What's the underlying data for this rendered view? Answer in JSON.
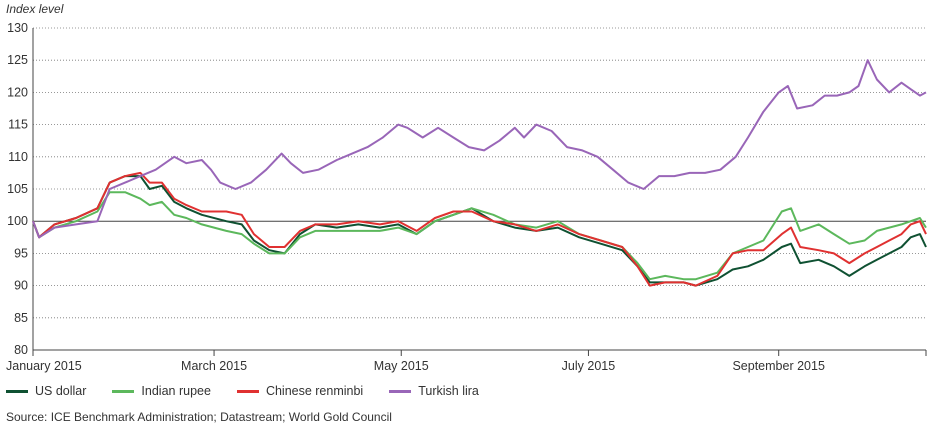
{
  "chart_data": {
    "type": "line",
    "ylabel": "Index level",
    "ylim": [
      80,
      130
    ],
    "yticks": [
      80,
      85,
      90,
      95,
      100,
      105,
      110,
      115,
      120,
      125,
      130
    ],
    "xlim": [
      "2015-01-01",
      "2015-10-19"
    ],
    "xticks": [
      {
        "label": "January 2015",
        "date": "2015-01-01"
      },
      {
        "label": "March 2015",
        "date": "2015-03-01"
      },
      {
        "label": "May 2015",
        "date": "2015-05-01"
      },
      {
        "label": "July 2015",
        "date": "2015-07-01"
      },
      {
        "label": "September 2015",
        "date": "2015-09-01"
      }
    ],
    "grid": "horizontal-dotted",
    "legend_position": "bottom",
    "series": [
      {
        "name": "US dollar",
        "color": "#0f5132",
        "points": [
          [
            "2015-01-01",
            100
          ],
          [
            "2015-01-03",
            97.5
          ],
          [
            "2015-01-08",
            99.5
          ],
          [
            "2015-01-15",
            100.5
          ],
          [
            "2015-01-22",
            102
          ],
          [
            "2015-01-26",
            106
          ],
          [
            "2015-01-31",
            107
          ],
          [
            "2015-02-05",
            107
          ],
          [
            "2015-02-08",
            105
          ],
          [
            "2015-02-12",
            105.5
          ],
          [
            "2015-02-16",
            103
          ],
          [
            "2015-02-20",
            102
          ],
          [
            "2015-02-25",
            101
          ],
          [
            "2015-03-05",
            100
          ],
          [
            "2015-03-10",
            99.5
          ],
          [
            "2015-03-14",
            97
          ],
          [
            "2015-03-19",
            95.5
          ],
          [
            "2015-03-24",
            95
          ],
          [
            "2015-03-29",
            98
          ],
          [
            "2015-04-03",
            99.5
          ],
          [
            "2015-04-10",
            99
          ],
          [
            "2015-04-17",
            99.5
          ],
          [
            "2015-04-24",
            99
          ],
          [
            "2015-04-30",
            99.5
          ],
          [
            "2015-05-06",
            98
          ],
          [
            "2015-05-12",
            100
          ],
          [
            "2015-05-18",
            101
          ],
          [
            "2015-05-24",
            102
          ],
          [
            "2015-05-31",
            100
          ],
          [
            "2015-06-07",
            99
          ],
          [
            "2015-06-14",
            98.5
          ],
          [
            "2015-06-21",
            99
          ],
          [
            "2015-06-28",
            97.5
          ],
          [
            "2015-07-05",
            96.5
          ],
          [
            "2015-07-12",
            95.5
          ],
          [
            "2015-07-17",
            93
          ],
          [
            "2015-07-21",
            90.5
          ],
          [
            "2015-07-26",
            90.5
          ],
          [
            "2015-08-01",
            90.5
          ],
          [
            "2015-08-05",
            90
          ],
          [
            "2015-08-12",
            91
          ],
          [
            "2015-08-17",
            92.5
          ],
          [
            "2015-08-22",
            93
          ],
          [
            "2015-08-27",
            94
          ],
          [
            "2015-09-02",
            96
          ],
          [
            "2015-09-05",
            96.5
          ],
          [
            "2015-09-08",
            93.5
          ],
          [
            "2015-09-14",
            94
          ],
          [
            "2015-09-19",
            93
          ],
          [
            "2015-09-24",
            91.5
          ],
          [
            "2015-09-29",
            93
          ],
          [
            "2015-10-03",
            94
          ],
          [
            "2015-10-07",
            95
          ],
          [
            "2015-10-11",
            96
          ],
          [
            "2015-10-14",
            97.5
          ],
          [
            "2015-10-17",
            98
          ],
          [
            "2015-10-19",
            96
          ]
        ]
      },
      {
        "name": "Indian rupee",
        "color": "#5cb85c",
        "points": [
          [
            "2015-01-01",
            100
          ],
          [
            "2015-01-03",
            97.5
          ],
          [
            "2015-01-08",
            99
          ],
          [
            "2015-01-15",
            100
          ],
          [
            "2015-01-22",
            101.5
          ],
          [
            "2015-01-26",
            104.5
          ],
          [
            "2015-01-31",
            104.5
          ],
          [
            "2015-02-05",
            103.5
          ],
          [
            "2015-02-08",
            102.5
          ],
          [
            "2015-02-12",
            103
          ],
          [
            "2015-02-16",
            101
          ],
          [
            "2015-02-20",
            100.5
          ],
          [
            "2015-02-25",
            99.5
          ],
          [
            "2015-03-05",
            98.5
          ],
          [
            "2015-03-10",
            98
          ],
          [
            "2015-03-14",
            96.5
          ],
          [
            "2015-03-19",
            95
          ],
          [
            "2015-03-24",
            95
          ],
          [
            "2015-03-29",
            97.5
          ],
          [
            "2015-04-03",
            98.5
          ],
          [
            "2015-04-10",
            98.5
          ],
          [
            "2015-04-17",
            98.5
          ],
          [
            "2015-04-24",
            98.5
          ],
          [
            "2015-04-30",
            99
          ],
          [
            "2015-05-06",
            98
          ],
          [
            "2015-05-12",
            100
          ],
          [
            "2015-05-18",
            101
          ],
          [
            "2015-05-24",
            102
          ],
          [
            "2015-05-31",
            101
          ],
          [
            "2015-06-07",
            99.5
          ],
          [
            "2015-06-14",
            99
          ],
          [
            "2015-06-21",
            100
          ],
          [
            "2015-06-28",
            98
          ],
          [
            "2015-07-05",
            97
          ],
          [
            "2015-07-12",
            96
          ],
          [
            "2015-07-17",
            93.5
          ],
          [
            "2015-07-21",
            91
          ],
          [
            "2015-07-26",
            91.5
          ],
          [
            "2015-08-01",
            91
          ],
          [
            "2015-08-05",
            91
          ],
          [
            "2015-08-12",
            92
          ],
          [
            "2015-08-17",
            95
          ],
          [
            "2015-08-22",
            96
          ],
          [
            "2015-08-27",
            97
          ],
          [
            "2015-09-02",
            101.5
          ],
          [
            "2015-09-05",
            102
          ],
          [
            "2015-09-08",
            98.5
          ],
          [
            "2015-09-14",
            99.5
          ],
          [
            "2015-09-19",
            98
          ],
          [
            "2015-09-24",
            96.5
          ],
          [
            "2015-09-29",
            97
          ],
          [
            "2015-10-03",
            98.5
          ],
          [
            "2015-10-07",
            99
          ],
          [
            "2015-10-11",
            99.5
          ],
          [
            "2015-10-14",
            100
          ],
          [
            "2015-10-17",
            100.5
          ],
          [
            "2015-10-19",
            99
          ]
        ]
      },
      {
        "name": "Chinese renminbi",
        "color": "#e03131",
        "points": [
          [
            "2015-01-01",
            100
          ],
          [
            "2015-01-03",
            97.5
          ],
          [
            "2015-01-08",
            99.5
          ],
          [
            "2015-01-15",
            100.5
          ],
          [
            "2015-01-22",
            102
          ],
          [
            "2015-01-26",
            106
          ],
          [
            "2015-01-31",
            107
          ],
          [
            "2015-02-05",
            107.5
          ],
          [
            "2015-02-08",
            106
          ],
          [
            "2015-02-12",
            106
          ],
          [
            "2015-02-16",
            103.5
          ],
          [
            "2015-02-20",
            102.5
          ],
          [
            "2015-02-25",
            101.5
          ],
          [
            "2015-03-05",
            101.5
          ],
          [
            "2015-03-10",
            101
          ],
          [
            "2015-03-14",
            98
          ],
          [
            "2015-03-19",
            96
          ],
          [
            "2015-03-24",
            96
          ],
          [
            "2015-03-29",
            98.5
          ],
          [
            "2015-04-03",
            99.5
          ],
          [
            "2015-04-10",
            99.5
          ],
          [
            "2015-04-17",
            100
          ],
          [
            "2015-04-24",
            99.5
          ],
          [
            "2015-04-30",
            100
          ],
          [
            "2015-05-06",
            98.5
          ],
          [
            "2015-05-12",
            100.5
          ],
          [
            "2015-05-18",
            101.5
          ],
          [
            "2015-05-24",
            101.5
          ],
          [
            "2015-05-31",
            100
          ],
          [
            "2015-06-07",
            99.5
          ],
          [
            "2015-06-14",
            98.5
          ],
          [
            "2015-06-21",
            99.5
          ],
          [
            "2015-06-28",
            98
          ],
          [
            "2015-07-05",
            97
          ],
          [
            "2015-07-12",
            96
          ],
          [
            "2015-07-17",
            93
          ],
          [
            "2015-07-21",
            90
          ],
          [
            "2015-07-26",
            90.5
          ],
          [
            "2015-08-01",
            90.5
          ],
          [
            "2015-08-05",
            90
          ],
          [
            "2015-08-12",
            91.5
          ],
          [
            "2015-08-17",
            95
          ],
          [
            "2015-08-22",
            95.5
          ],
          [
            "2015-08-27",
            95.5
          ],
          [
            "2015-09-02",
            98
          ],
          [
            "2015-09-05",
            99
          ],
          [
            "2015-09-08",
            96
          ],
          [
            "2015-09-14",
            95.5
          ],
          [
            "2015-09-19",
            95
          ],
          [
            "2015-09-24",
            93.5
          ],
          [
            "2015-09-29",
            95
          ],
          [
            "2015-10-03",
            96
          ],
          [
            "2015-10-07",
            97
          ],
          [
            "2015-10-11",
            98
          ],
          [
            "2015-10-14",
            99.5
          ],
          [
            "2015-10-17",
            100
          ],
          [
            "2015-10-19",
            98
          ]
        ]
      },
      {
        "name": "Turkish lira",
        "color": "#9966b8",
        "points": [
          [
            "2015-01-01",
            100
          ],
          [
            "2015-01-03",
            97.5
          ],
          [
            "2015-01-08",
            99
          ],
          [
            "2015-01-15",
            99.5
          ],
          [
            "2015-01-22",
            100
          ],
          [
            "2015-01-26",
            105
          ],
          [
            "2015-01-31",
            106
          ],
          [
            "2015-02-05",
            107
          ],
          [
            "2015-02-10",
            108
          ],
          [
            "2015-02-16",
            110
          ],
          [
            "2015-02-20",
            109
          ],
          [
            "2015-02-25",
            109.5
          ],
          [
            "2015-02-28",
            108
          ],
          [
            "2015-03-03",
            106
          ],
          [
            "2015-03-08",
            105
          ],
          [
            "2015-03-13",
            106
          ],
          [
            "2015-03-18",
            108
          ],
          [
            "2015-03-23",
            110.5
          ],
          [
            "2015-03-26",
            109
          ],
          [
            "2015-03-30",
            107.5
          ],
          [
            "2015-04-04",
            108
          ],
          [
            "2015-04-10",
            109.5
          ],
          [
            "2015-04-15",
            110.5
          ],
          [
            "2015-04-20",
            111.5
          ],
          [
            "2015-04-25",
            113
          ],
          [
            "2015-04-30",
            115
          ],
          [
            "2015-05-03",
            114.5
          ],
          [
            "2015-05-08",
            113
          ],
          [
            "2015-05-13",
            114.5
          ],
          [
            "2015-05-18",
            113
          ],
          [
            "2015-05-23",
            111.5
          ],
          [
            "2015-05-28",
            111
          ],
          [
            "2015-06-02",
            112.5
          ],
          [
            "2015-06-07",
            114.5
          ],
          [
            "2015-06-10",
            113
          ],
          [
            "2015-06-14",
            115
          ],
          [
            "2015-06-19",
            114
          ],
          [
            "2015-06-24",
            111.5
          ],
          [
            "2015-06-29",
            111
          ],
          [
            "2015-07-04",
            110
          ],
          [
            "2015-07-09",
            108
          ],
          [
            "2015-07-14",
            106
          ],
          [
            "2015-07-19",
            105
          ],
          [
            "2015-07-24",
            107
          ],
          [
            "2015-07-29",
            107
          ],
          [
            "2015-08-03",
            107.5
          ],
          [
            "2015-08-08",
            107.5
          ],
          [
            "2015-08-13",
            108
          ],
          [
            "2015-08-18",
            110
          ],
          [
            "2015-08-22",
            113
          ],
          [
            "2015-08-27",
            117
          ],
          [
            "2015-09-01",
            120
          ],
          [
            "2015-09-04",
            121
          ],
          [
            "2015-09-07",
            117.5
          ],
          [
            "2015-09-12",
            118
          ],
          [
            "2015-09-16",
            119.5
          ],
          [
            "2015-09-20",
            119.5
          ],
          [
            "2015-09-24",
            120
          ],
          [
            "2015-09-27",
            121
          ],
          [
            "2015-09-30",
            125
          ],
          [
            "2015-10-03",
            122
          ],
          [
            "2015-10-07",
            120
          ],
          [
            "2015-10-11",
            121.5
          ],
          [
            "2015-10-14",
            120.5
          ],
          [
            "2015-10-17",
            119.5
          ],
          [
            "2015-10-19",
            120
          ]
        ]
      }
    ]
  },
  "source_note": "Source: ICE Benchmark Administration; Datastream; World Gold Council"
}
